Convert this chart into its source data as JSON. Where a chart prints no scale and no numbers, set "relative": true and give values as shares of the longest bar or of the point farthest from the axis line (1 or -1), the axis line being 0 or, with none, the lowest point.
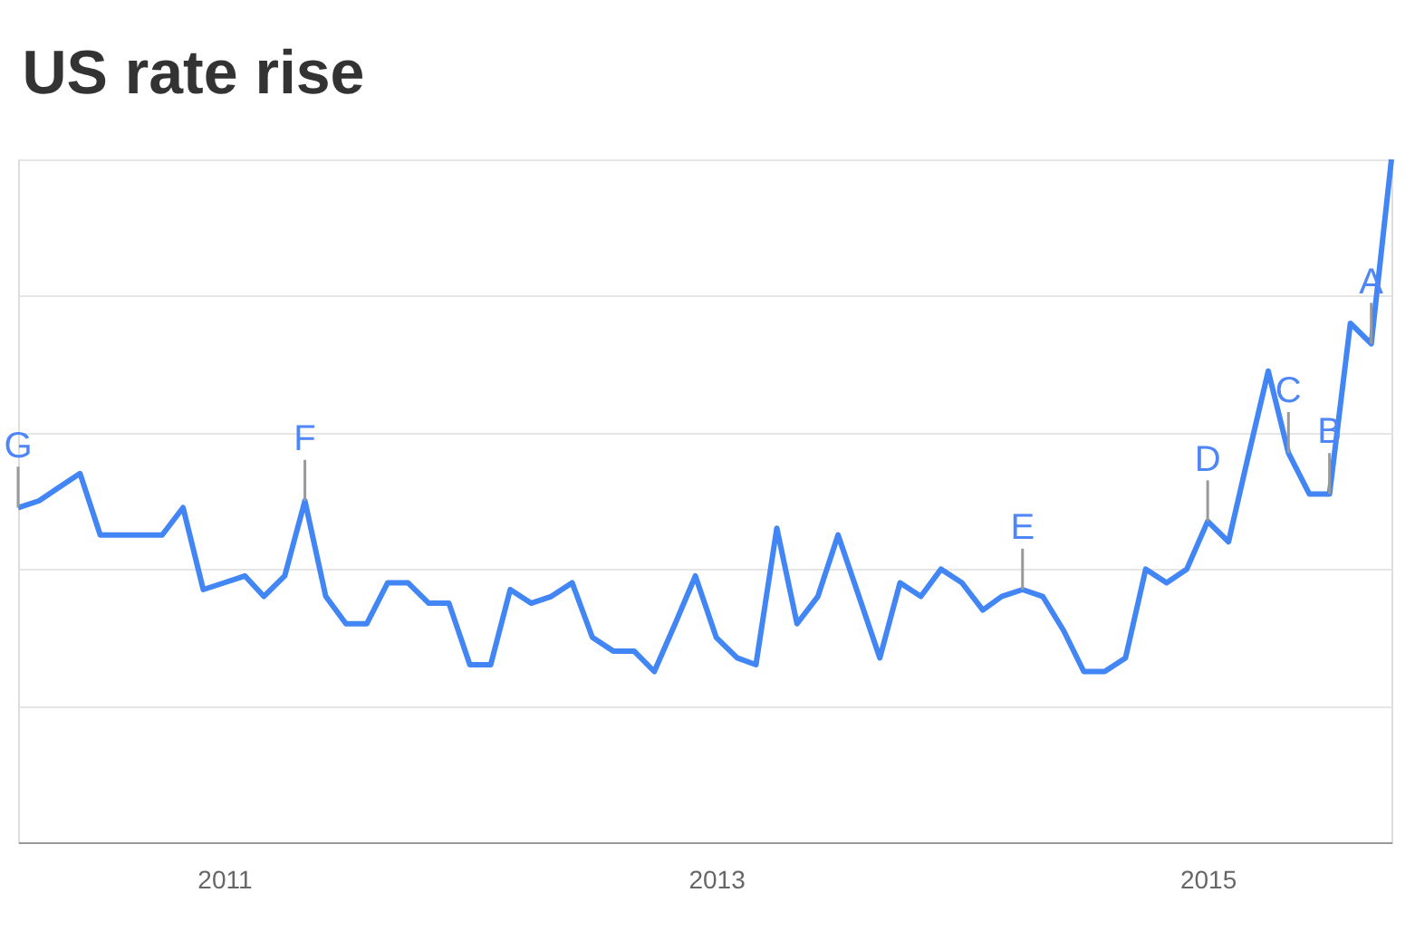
{
  "chart_data": {
    "type": "line",
    "title": "US rate rise",
    "relative": true,
    "grid": "y",
    "color": "#4285f4",
    "x": [
      "2010-03",
      "2010-04",
      "2010-05",
      "2010-06",
      "2010-07",
      "2010-08",
      "2010-09",
      "2010-10",
      "2010-11",
      "2010-12",
      "2011-01",
      "2011-02",
      "2011-03",
      "2011-04",
      "2011-05",
      "2011-06",
      "2011-07",
      "2011-08",
      "2011-09",
      "2011-10",
      "2011-11",
      "2011-12",
      "2012-01",
      "2012-02",
      "2012-03",
      "2012-04",
      "2012-05",
      "2012-06",
      "2012-07",
      "2012-08",
      "2012-09",
      "2012-10",
      "2012-11",
      "2012-12",
      "2013-01",
      "2013-02",
      "2013-03",
      "2013-04",
      "2013-05",
      "2013-06",
      "2013-07",
      "2013-08",
      "2013-09",
      "2013-10",
      "2013-11",
      "2013-12",
      "2014-01",
      "2014-02",
      "2014-03",
      "2014-04",
      "2014-05",
      "2014-06",
      "2014-07",
      "2014-08",
      "2014-09",
      "2014-10",
      "2014-11",
      "2014-12",
      "2015-01",
      "2015-02",
      "2015-03",
      "2015-04",
      "2015-05",
      "2015-06",
      "2015-07",
      "2015-08",
      "2015-09",
      "2015-10"
    ],
    "values": [
      0.49,
      0.5,
      0.52,
      0.54,
      0.45,
      0.45,
      0.45,
      0.45,
      0.49,
      0.37,
      0.38,
      0.39,
      0.36,
      0.39,
      0.5,
      0.36,
      0.32,
      0.32,
      0.38,
      0.38,
      0.35,
      0.35,
      0.26,
      0.26,
      0.37,
      0.35,
      0.36,
      0.38,
      0.3,
      0.28,
      0.28,
      0.25,
      0.32,
      0.39,
      0.3,
      0.27,
      0.26,
      0.46,
      0.32,
      0.36,
      0.45,
      0.36,
      0.27,
      0.38,
      0.36,
      0.4,
      0.38,
      0.34,
      0.36,
      0.37,
      0.36,
      0.31,
      0.25,
      0.25,
      0.27,
      0.4,
      0.38,
      0.4,
      0.47,
      0.44,
      0.56,
      0.69,
      0.57,
      0.51,
      0.51,
      0.76,
      0.73,
      1.0
    ],
    "xlim": [
      "2010-03",
      "2015-10"
    ],
    "xticks": [
      "2011",
      "2013",
      "2015"
    ],
    "line_style": "solid",
    "marker": "none",
    "annotations": [
      {
        "text": "G",
        "x": "2010-03",
        "y": 0.49
      },
      {
        "text": "F",
        "x": "2011-05",
        "y": 0.5
      },
      {
        "text": "E",
        "x": "2014-04",
        "y": 0.37
      },
      {
        "text": "D",
        "x": "2015-01",
        "y": 0.47
      },
      {
        "text": "C",
        "x": "2015-05",
        "y": 0.57
      },
      {
        "text": "B",
        "x": "2015-07",
        "y": 0.51
      },
      {
        "text": "A",
        "x": "2015-09",
        "y": 0.73
      }
    ]
  }
}
